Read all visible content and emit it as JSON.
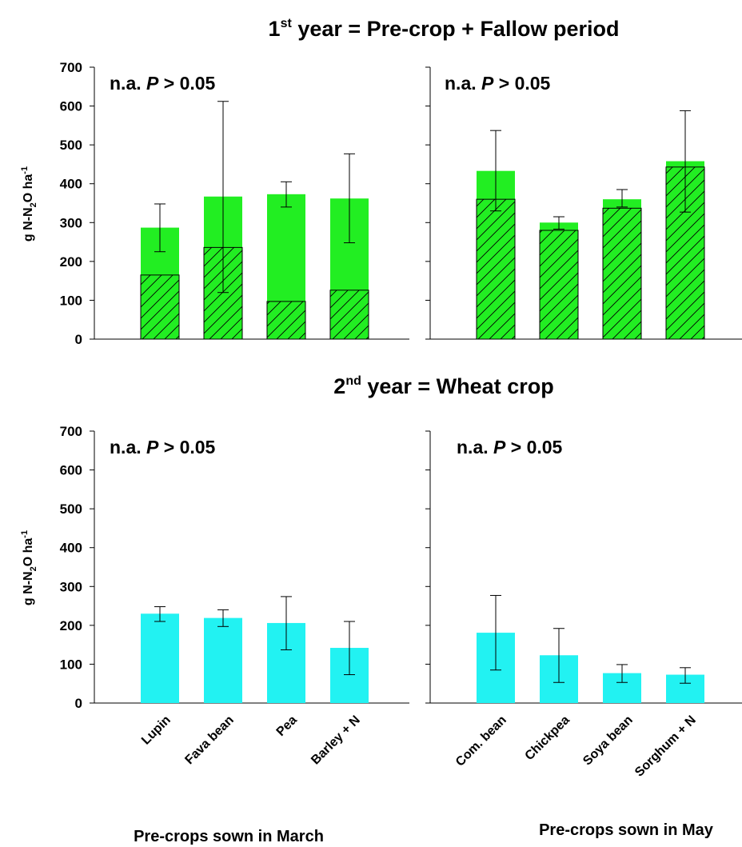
{
  "titles": {
    "top": {
      "pre": "1",
      "sup": "st",
      "post": " year = Pre-crop + Fallow period"
    },
    "bottom": {
      "pre": "2",
      "sup": "nd",
      "post": " year = Wheat crop"
    }
  },
  "ylabel": {
    "a": "g N-N",
    "sub": "2",
    "b": "O ha",
    "sup": "-1"
  },
  "xgroup_labels": [
    "Pre-crops sown in March",
    "Pre-crops sown in May"
  ],
  "annotation": {
    "prefix": "n.a. ",
    "p": "P",
    "suffix": " > 0.05"
  },
  "colors": {
    "top_fill": "#22ee22",
    "bottom_fill": "#22f2f2",
    "edge": "#000000"
  },
  "chart_data": [
    {
      "type": "bar",
      "panel": "top-left",
      "categories": [
        "Lupin",
        "Fava bean",
        "Pea",
        "Barley + N"
      ],
      "series": [
        {
          "values": [
            287,
            367,
            373,
            362
          ],
          "error": [
            [
              225,
              348
            ],
            [
              120,
              612
            ],
            [
              340,
              405
            ],
            [
              248,
              477
            ]
          ]
        },
        {
          "values": [
            165,
            236,
            97,
            126
          ],
          "pattern": "hatched"
        }
      ],
      "ylim": [
        0,
        700
      ],
      "yticks": [
        0,
        100,
        200,
        300,
        400,
        500,
        600,
        700
      ]
    },
    {
      "type": "bar",
      "panel": "top-right",
      "categories": [
        "Com. bean",
        "Chickpea",
        "Soya bean",
        "Sorghum + N"
      ],
      "series": [
        {
          "values": [
            433,
            300,
            360,
            458
          ],
          "error": [
            [
              330,
              537
            ],
            [
              283,
              315
            ],
            [
              340,
              385
            ],
            [
              327,
              588
            ]
          ]
        },
        {
          "values": [
            360,
            280,
            337,
            443
          ],
          "pattern": "hatched"
        }
      ],
      "ylim": [
        0,
        700
      ]
    },
    {
      "type": "bar",
      "panel": "bottom-left",
      "categories": [
        "Lupin",
        "Fava bean",
        "Pea",
        "Barley + N"
      ],
      "series": [
        {
          "values": [
            230,
            219,
            206,
            142
          ],
          "error": [
            [
              210,
              248
            ],
            [
              197,
              240
            ],
            [
              137,
              274
            ],
            [
              73,
              210
            ]
          ]
        }
      ],
      "ylim": [
        0,
        700
      ],
      "yticks": [
        0,
        100,
        200,
        300,
        400,
        500,
        600,
        700
      ]
    },
    {
      "type": "bar",
      "panel": "bottom-right",
      "categories": [
        "Com. bean",
        "Chickpea",
        "Soya bean",
        "Sorghum + N"
      ],
      "series": [
        {
          "values": [
            181,
            123,
            77,
            73
          ],
          "error": [
            [
              85,
              277
            ],
            [
              53,
              192
            ],
            [
              53,
              99
            ],
            [
              51,
              91
            ]
          ]
        }
      ],
      "ylim": [
        0,
        700
      ]
    }
  ]
}
